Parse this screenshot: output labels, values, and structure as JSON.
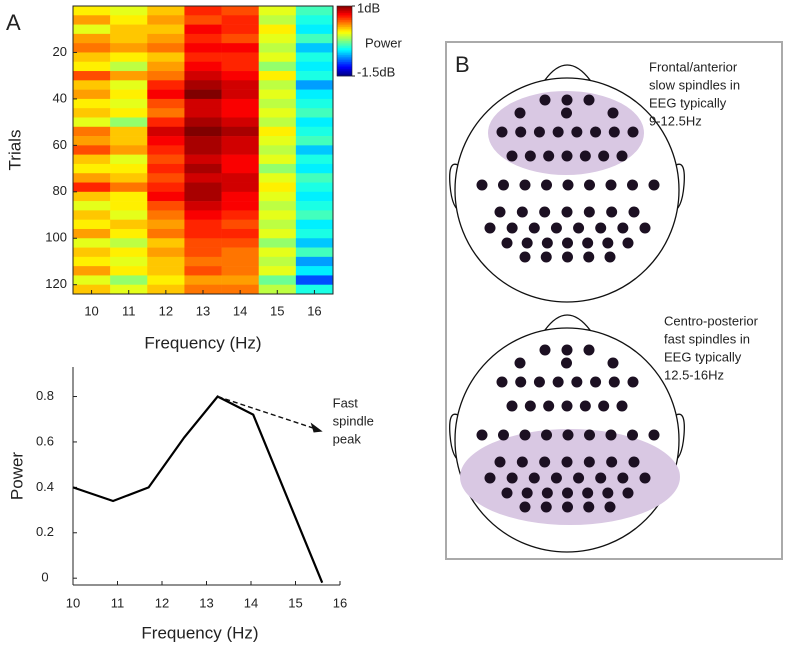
{
  "panel_labels": [
    "A",
    "B"
  ],
  "chart_data": [
    {
      "type": "heatmap",
      "x_label": "Frequency (Hz)",
      "y_label": "Trials",
      "x": [
        10,
        11,
        12,
        13,
        14,
        15,
        16
      ],
      "y": [
        2,
        6,
        10,
        14,
        18,
        22,
        26,
        30,
        34,
        38,
        42,
        46,
        50,
        54,
        58,
        62,
        66,
        70,
        74,
        78,
        82,
        86,
        90,
        94,
        98,
        102,
        106,
        110,
        114,
        118,
        122
      ],
      "values": [
        [
          0.1,
          0.0,
          0.2,
          0.6,
          0.5,
          0.0,
          -0.4
        ],
        [
          0.3,
          0.1,
          0.3,
          0.5,
          0.6,
          -0.1,
          -0.5
        ],
        [
          0.0,
          0.2,
          0.2,
          0.7,
          0.6,
          0.1,
          -0.6
        ],
        [
          0.3,
          0.2,
          0.3,
          0.6,
          0.5,
          0.0,
          -0.4
        ],
        [
          0.4,
          0.3,
          0.4,
          0.7,
          0.7,
          -0.1,
          -0.7
        ],
        [
          0.2,
          0.1,
          0.2,
          0.6,
          0.6,
          0.0,
          -0.5
        ],
        [
          0.1,
          -0.1,
          0.3,
          0.7,
          0.6,
          -0.2,
          -0.6
        ],
        [
          0.5,
          0.3,
          0.4,
          0.8,
          0.7,
          0.1,
          -0.5
        ],
        [
          0.2,
          0.0,
          0.6,
          0.9,
          0.8,
          -0.1,
          -0.8
        ],
        [
          0.3,
          0.1,
          0.7,
          1.0,
          0.8,
          0.0,
          -0.6
        ],
        [
          0.1,
          0.0,
          0.5,
          0.8,
          0.7,
          -0.1,
          -0.5
        ],
        [
          0.2,
          0.1,
          0.4,
          0.8,
          0.7,
          0.0,
          -0.4
        ],
        [
          0.0,
          -0.2,
          0.6,
          0.9,
          0.8,
          -0.1,
          -0.6
        ],
        [
          0.4,
          0.2,
          0.8,
          1.0,
          0.9,
          0.1,
          -0.5
        ],
        [
          0.3,
          0.2,
          0.7,
          0.9,
          0.8,
          0.0,
          -0.4
        ],
        [
          0.5,
          0.3,
          0.6,
          0.9,
          0.8,
          -0.1,
          -0.7
        ],
        [
          0.2,
          0.0,
          0.5,
          0.8,
          0.7,
          0.0,
          -0.5
        ],
        [
          0.1,
          0.1,
          0.6,
          0.9,
          0.7,
          -0.2,
          -0.6
        ],
        [
          0.3,
          0.2,
          0.5,
          0.8,
          0.8,
          0.0,
          -0.4
        ],
        [
          0.6,
          0.4,
          0.6,
          0.9,
          0.8,
          0.1,
          -0.5
        ],
        [
          0.2,
          0.1,
          0.7,
          0.9,
          0.7,
          0.0,
          -0.6
        ],
        [
          0.0,
          0.1,
          0.5,
          0.8,
          0.7,
          -0.1,
          -0.5
        ],
        [
          0.2,
          0.0,
          0.4,
          0.7,
          0.6,
          0.0,
          -0.4
        ],
        [
          0.1,
          0.2,
          0.3,
          0.6,
          0.5,
          -0.1,
          -0.6
        ],
        [
          0.3,
          0.1,
          0.4,
          0.6,
          0.6,
          0.0,
          -0.5
        ],
        [
          0.0,
          -0.1,
          0.2,
          0.5,
          0.5,
          -0.2,
          -0.7
        ],
        [
          0.2,
          0.1,
          0.3,
          0.5,
          0.4,
          0.0,
          -0.4
        ],
        [
          0.1,
          0.0,
          0.2,
          0.4,
          0.4,
          -0.1,
          -0.8
        ],
        [
          0.3,
          0.1,
          0.2,
          0.5,
          0.4,
          0.0,
          -0.6
        ],
        [
          0.0,
          -0.2,
          0.1,
          0.3,
          0.3,
          -0.3,
          -1.0
        ],
        [
          0.2,
          0.0,
          0.2,
          0.4,
          0.4,
          -0.1,
          -0.5
        ]
      ],
      "xlim": [
        9.5,
        16.5
      ],
      "xticks": [
        10,
        11,
        12,
        13,
        14,
        15,
        16
      ],
      "ylim": [
        0,
        124
      ],
      "yticks": [
        20,
        40,
        60,
        80,
        100,
        120
      ],
      "colorbar": {
        "label": "Power",
        "lim": [
          -1.5,
          1
        ],
        "colormap": "jet",
        "ticks": [
          {
            "value": 1,
            "label": "1dB"
          },
          {
            "value": -1.5,
            "label": "-1.5dB"
          }
        ]
      }
    },
    {
      "type": "line",
      "x_label": "Frequency (Hz)",
      "y_label": "Power",
      "x": [
        10,
        10.9,
        11.7,
        12.5,
        13.25,
        14.05,
        15.6
      ],
      "values": [
        0.4,
        0.34,
        0.4,
        0.62,
        0.8,
        0.72,
        -0.02
      ],
      "color": "#000000",
      "xlim": [
        10,
        16
      ],
      "xticks": [
        10,
        11,
        12,
        13,
        14,
        15,
        16
      ],
      "ylim": [
        -0.03,
        0.93
      ],
      "yticks": [
        0,
        0.2,
        0.4,
        0.6,
        0.8
      ],
      "annotation": [
        "Fast",
        "spindle",
        "peak"
      ]
    }
  ],
  "diagram": {
    "head_1_note": [
      "Frontal/anterior",
      "slow spindles in",
      "EEG typically",
      "9-12.5Hz"
    ],
    "head_2_note": [
      "Centro-posterior",
      "fast spindles in",
      "EEG typically",
      "12.5-16Hz"
    ]
  }
}
